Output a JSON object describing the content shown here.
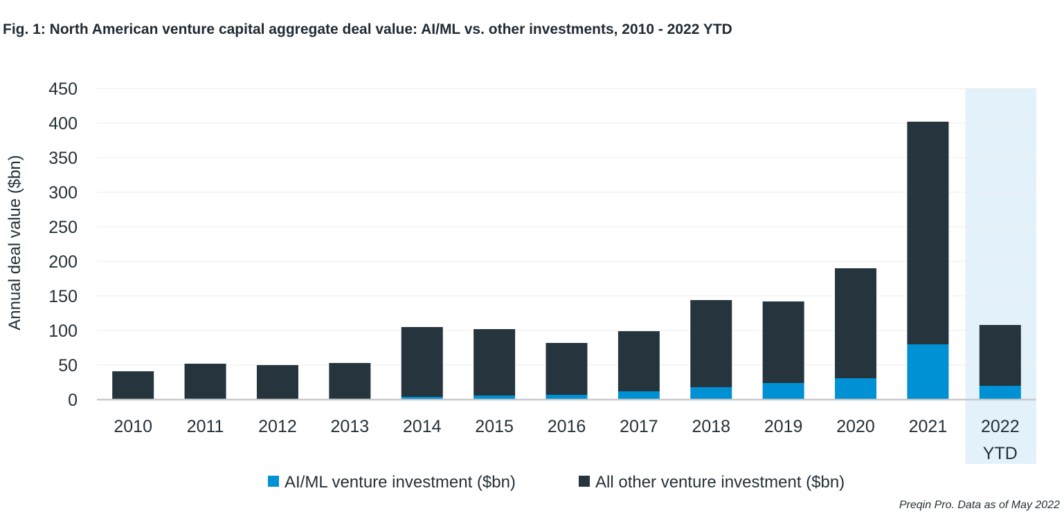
{
  "title": "Fig. 1: North American venture capital aggregate deal value: AI/ML vs. other investments, 2010 - 2022 YTD",
  "source": "Preqin Pro. Data as of May 2022",
  "colors": {
    "aiml": "#0091d5",
    "other": "#25343d",
    "highlight": "#e3f2fa",
    "grid": "#ececec",
    "axis": "#c8c8c8"
  },
  "chart_data": {
    "type": "bar",
    "stacked": true,
    "title": "Fig. 1: North American venture capital aggregate deal value: AI/ML vs. other investments, 2010 - 2022 YTD",
    "xlabel": "",
    "ylabel": "Annual deal value ($bn)",
    "ylim": [
      0,
      450
    ],
    "yticks": [
      0,
      50,
      100,
      150,
      200,
      250,
      300,
      350,
      400,
      450
    ],
    "grid": true,
    "legend": "bottom",
    "categories": [
      "2010",
      "2011",
      "2012",
      "2013",
      "2014",
      "2015",
      "2016",
      "2017",
      "2018",
      "2019",
      "2020",
      "2021",
      "2022 YTD"
    ],
    "highlighted_category": "2022 YTD",
    "series": [
      {
        "name": "AI/ML venture investment ($bn)",
        "color": "#0091d5",
        "values": [
          0.5,
          1.5,
          0.8,
          1.2,
          4,
          6,
          7,
          12,
          18,
          24,
          31,
          80,
          20
        ]
      },
      {
        "name": "All other venture investment ($bn)",
        "color": "#25343d",
        "values": [
          40.5,
          50.5,
          49.2,
          51.8,
          101,
          96,
          75,
          87,
          126,
          118,
          159,
          322,
          88
        ]
      }
    ]
  }
}
